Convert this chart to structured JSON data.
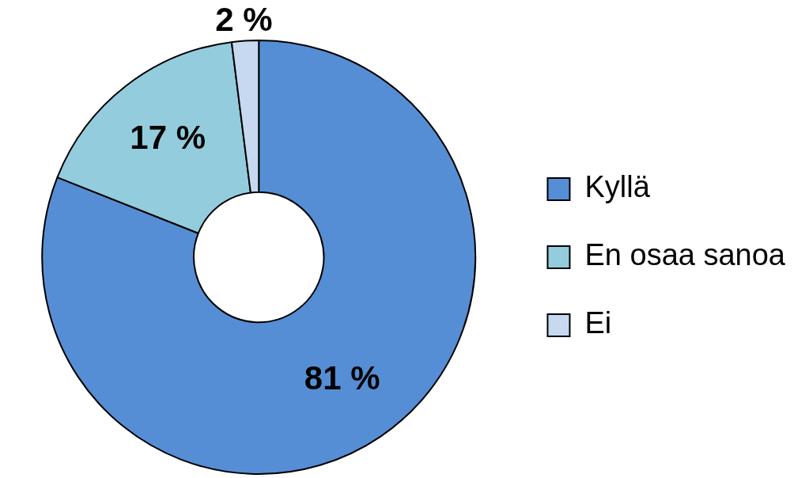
{
  "chart_data": {
    "type": "donut",
    "categories": [
      "Kyllä",
      "En osaa sanoa",
      "Ei"
    ],
    "values": [
      81,
      17,
      2
    ],
    "colors": [
      "#558ed5",
      "#93cddd",
      "#c6d9f1"
    ],
    "value_labels": [
      "81 %",
      "17 %",
      "2 %"
    ],
    "legend": "right"
  }
}
